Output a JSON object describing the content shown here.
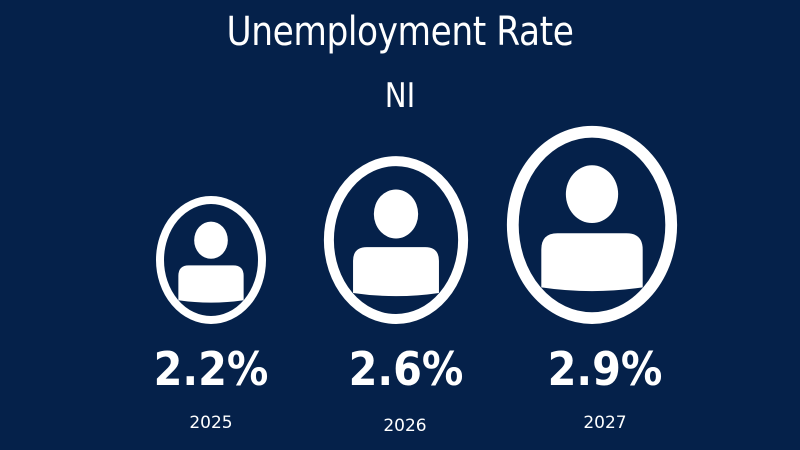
{
  "header": {
    "title": "Unemployment Rate",
    "subtitle": "NI"
  },
  "colors": {
    "background": "#05214a",
    "foreground": "#ffffff"
  },
  "icon_name": "person-icon",
  "chart_data": {
    "type": "pictograph",
    "title": "Unemployment Rate",
    "subtitle": "NI",
    "categories": [
      "2025",
      "2026",
      "2027"
    ],
    "values": [
      2.2,
      2.6,
      2.9
    ],
    "value_labels": [
      "2.2%",
      "2.6%",
      "2.9%"
    ],
    "unit": "%"
  }
}
